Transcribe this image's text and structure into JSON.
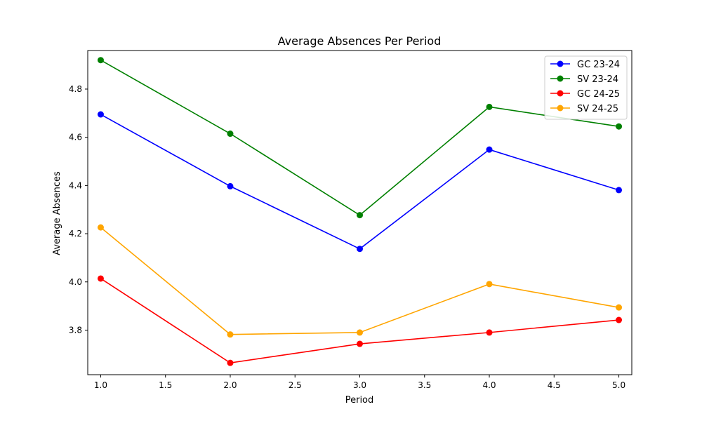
{
  "chart_data": {
    "type": "line",
    "title": "Average Absences Per Period",
    "xlabel": "Period",
    "ylabel": "Average Absences",
    "xlim": [
      0.9,
      5.1
    ],
    "ylim": [
      3.615,
      4.96
    ],
    "xticks": [
      1.0,
      1.5,
      2.0,
      2.5,
      3.0,
      3.5,
      4.0,
      4.5,
      5.0
    ],
    "xtick_labels": [
      "1.0",
      "1.5",
      "2.0",
      "2.5",
      "3.0",
      "3.5",
      "4.0",
      "4.5",
      "5.0"
    ],
    "yticks": [
      3.8,
      4.0,
      4.2,
      4.4,
      4.6,
      4.8
    ],
    "ytick_labels": [
      "3.8",
      "4.0",
      "4.2",
      "4.4",
      "4.6",
      "4.8"
    ],
    "grid": false,
    "legend_position": "top-right",
    "x": [
      1,
      2,
      3,
      4,
      5
    ],
    "series": [
      {
        "name": "GC 23-24",
        "color": "#0000ff",
        "values": [
          4.695,
          4.397,
          4.137,
          4.549,
          4.381
        ]
      },
      {
        "name": "SV 23-24",
        "color": "#008000",
        "values": [
          4.92,
          4.615,
          4.277,
          4.726,
          4.645
        ]
      },
      {
        "name": "GC 24-25",
        "color": "#ff0000",
        "values": [
          4.014,
          3.664,
          3.743,
          3.79,
          3.842
        ]
      },
      {
        "name": "SV 24-25",
        "color": "#ffa500",
        "values": [
          4.226,
          3.782,
          3.79,
          3.991,
          3.894
        ]
      }
    ]
  }
}
